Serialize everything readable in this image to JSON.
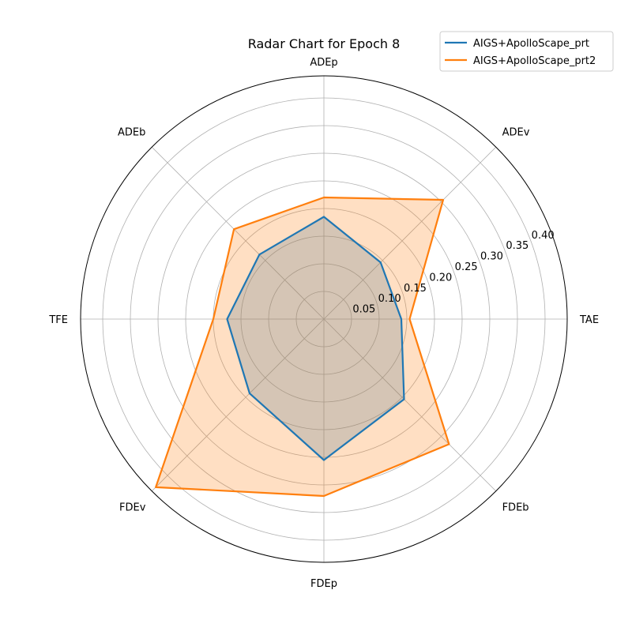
{
  "chart_data": {
    "type": "radar",
    "title": "Radar Chart for Epoch 8",
    "categories": [
      "TAE",
      "ADEv",
      "ADEp",
      "ADEb",
      "TFE",
      "FDEv",
      "FDEp",
      "FDEb"
    ],
    "rlim": [
      0,
      0.44
    ],
    "rticks": [
      0.05,
      0.1,
      0.15,
      0.2,
      0.25,
      0.3,
      0.35,
      0.4
    ],
    "rtick_labels": [
      "0.05",
      "0.10",
      "0.15",
      "0.20",
      "0.25",
      "0.30",
      "0.35",
      "0.40"
    ],
    "grid": true,
    "legend_position": "top-right",
    "series": [
      {
        "name": "AIGS+ApolloScape_prt",
        "color": "#1f77b4",
        "fill": "#1f77b4",
        "values": [
          0.14,
          0.145,
          0.185,
          0.165,
          0.175,
          0.19,
          0.255,
          0.205
        ]
      },
      {
        "name": "AIGS+ApolloScape_prt2",
        "color": "#ff7f0e",
        "fill": "#ff7f0e",
        "values": [
          0.155,
          0.305,
          0.22,
          0.23,
          0.2,
          0.43,
          0.32,
          0.32
        ]
      }
    ]
  }
}
